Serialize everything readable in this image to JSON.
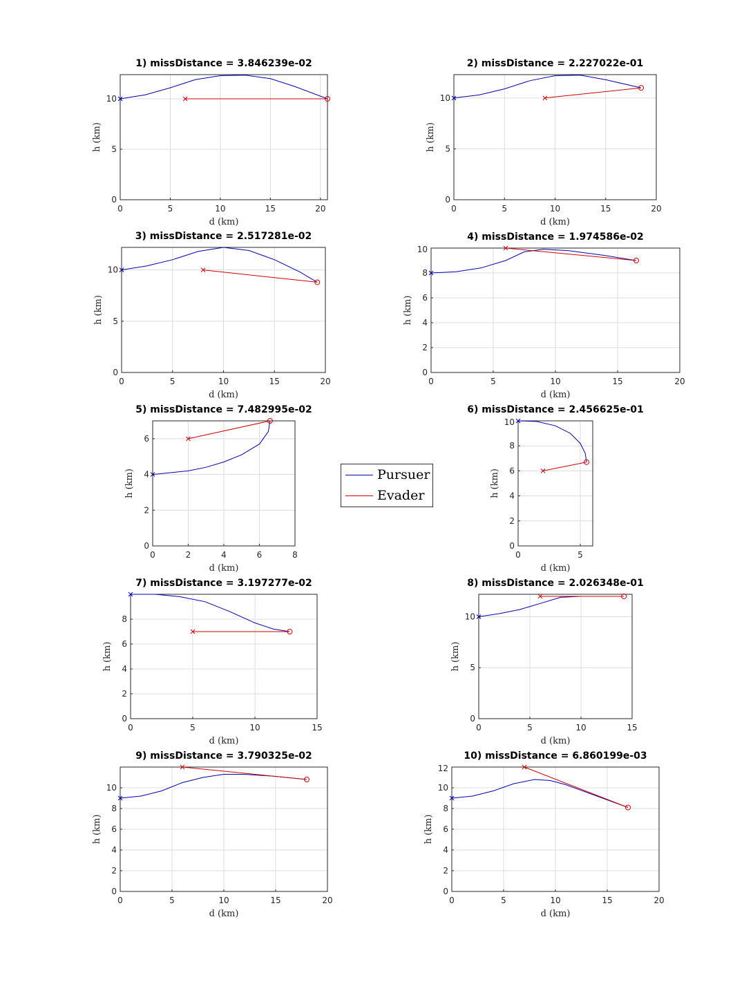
{
  "legend": {
    "pursuer": "Pursuer",
    "evader": "Evader"
  },
  "colors": {
    "pursuer": "#0000b0",
    "evader": "#d00000",
    "grid": "#dcdcdc"
  },
  "chart_data": [
    {
      "type": "line",
      "title": "1) missDistance = 3.846239e-02",
      "xlabel": "d (km)",
      "ylabel": "h (km)",
      "xlim": [
        0,
        20.7
      ],
      "ylim": [
        0,
        12.4
      ],
      "xticks": [
        0,
        5,
        10,
        15,
        20
      ],
      "yticks": [
        0,
        5,
        10
      ],
      "pursuer": [
        [
          0,
          10
        ],
        [
          2.5,
          10.4
        ],
        [
          5,
          11.1
        ],
        [
          7.5,
          11.9
        ],
        [
          10,
          12.3
        ],
        [
          12.5,
          12.35
        ],
        [
          15,
          12
        ],
        [
          17.5,
          11.2
        ],
        [
          20.7,
          10
        ]
      ],
      "evader": [
        [
          6.5,
          10
        ],
        [
          20.7,
          10
        ]
      ]
    },
    {
      "type": "line",
      "title": "2) missDistance = 2.227022e-01",
      "xlabel": "d (km)",
      "ylabel": "h (km)",
      "xlim": [
        0,
        20
      ],
      "ylim": [
        0,
        12.3
      ],
      "xticks": [
        0,
        5,
        10,
        15,
        20
      ],
      "yticks": [
        0,
        5,
        10
      ],
      "pursuer": [
        [
          0,
          10
        ],
        [
          2.5,
          10.3
        ],
        [
          5,
          10.9
        ],
        [
          7.5,
          11.7
        ],
        [
          10,
          12.2
        ],
        [
          12.5,
          12.25
        ],
        [
          15,
          11.8
        ],
        [
          18.5,
          11
        ]
      ],
      "evader": [
        [
          9,
          10
        ],
        [
          18.5,
          11
        ]
      ]
    },
    {
      "type": "line",
      "title": "3) missDistance = 2.517281e-02",
      "xlabel": "d (km)",
      "ylabel": "h (km)",
      "xlim": [
        0,
        20
      ],
      "ylim": [
        0,
        12.2
      ],
      "xticks": [
        0,
        5,
        10,
        15,
        20
      ],
      "yticks": [
        0,
        5,
        10
      ],
      "pursuer": [
        [
          0,
          10
        ],
        [
          2.5,
          10.4
        ],
        [
          5,
          11
        ],
        [
          7.5,
          11.8
        ],
        [
          10,
          12.2
        ],
        [
          12.5,
          11.9
        ],
        [
          15,
          11
        ],
        [
          17.5,
          9.8
        ],
        [
          19.2,
          8.8
        ]
      ],
      "evader": [
        [
          8,
          10
        ],
        [
          19.2,
          8.8
        ]
      ]
    },
    {
      "type": "line",
      "title": "4) missDistance = 1.974586e-02",
      "xlabel": "d (km)",
      "ylabel": "h (km)",
      "xlim": [
        0,
        20
      ],
      "ylim": [
        0,
        10
      ],
      "xticks": [
        0,
        5,
        10,
        15,
        20
      ],
      "yticks": [
        0,
        2,
        4,
        6,
        8,
        10
      ],
      "pursuer": [
        [
          0,
          8
        ],
        [
          2,
          8.1
        ],
        [
          4,
          8.4
        ],
        [
          6,
          9
        ],
        [
          7.5,
          9.7
        ],
        [
          9,
          9.9
        ],
        [
          11,
          9.8
        ],
        [
          14,
          9.4
        ],
        [
          16.5,
          9
        ]
      ],
      "evader": [
        [
          6,
          10
        ],
        [
          16.5,
          9
        ]
      ]
    },
    {
      "type": "line",
      "title": "5) missDistance = 7.482995e-02",
      "xlabel": "d (km)",
      "ylabel": "h (km)",
      "xlim": [
        0,
        8
      ],
      "ylim": [
        0,
        7
      ],
      "xticks": [
        0,
        2,
        4,
        6,
        8
      ],
      "yticks": [
        0,
        2,
        4,
        6
      ],
      "pursuer": [
        [
          0,
          4
        ],
        [
          1,
          4.1
        ],
        [
          2,
          4.2
        ],
        [
          3,
          4.4
        ],
        [
          4,
          4.7
        ],
        [
          5,
          5.1
        ],
        [
          6,
          5.7
        ],
        [
          6.5,
          6.4
        ],
        [
          6.6,
          7
        ]
      ],
      "evader": [
        [
          2,
          6
        ],
        [
          6.6,
          7
        ]
      ]
    },
    {
      "type": "line",
      "title": "6) missDistance = 2.456625e-01",
      "xlabel": "d (km)",
      "ylabel": "h (km)",
      "xlim": [
        0,
        6
      ],
      "ylim": [
        0,
        10
      ],
      "xticks": [
        0,
        5
      ],
      "yticks": [
        0,
        2,
        4,
        6,
        8,
        10
      ],
      "pursuer": [
        [
          0,
          10
        ],
        [
          1.5,
          9.95
        ],
        [
          3,
          9.6
        ],
        [
          4.2,
          9
        ],
        [
          5,
          8.2
        ],
        [
          5.4,
          7.4
        ],
        [
          5.5,
          6.7
        ]
      ],
      "evader": [
        [
          2,
          6
        ],
        [
          5.5,
          6.7
        ]
      ]
    },
    {
      "type": "line",
      "title": "7) missDistance = 3.197277e-02",
      "xlabel": "d (km)",
      "ylabel": "h (km)",
      "xlim": [
        0,
        15
      ],
      "ylim": [
        0,
        10
      ],
      "xticks": [
        0,
        5,
        10,
        15
      ],
      "yticks": [
        0,
        2,
        4,
        6,
        8
      ],
      "pursuer": [
        [
          0,
          10
        ],
        [
          2,
          10
        ],
        [
          4,
          9.8
        ],
        [
          6,
          9.4
        ],
        [
          8,
          8.6
        ],
        [
          10,
          7.7
        ],
        [
          11.5,
          7.2
        ],
        [
          12.8,
          7
        ]
      ],
      "evader": [
        [
          5,
          7
        ],
        [
          12.8,
          7
        ]
      ]
    },
    {
      "type": "line",
      "title": "8) missDistance = 2.026348e-01",
      "xlabel": "d (km)",
      "ylabel": "h (km)",
      "xlim": [
        0,
        15
      ],
      "ylim": [
        0,
        12.2
      ],
      "xticks": [
        0,
        5,
        10,
        15
      ],
      "yticks": [
        0,
        5,
        10
      ],
      "pursuer": [
        [
          0,
          10
        ],
        [
          2,
          10.3
        ],
        [
          4,
          10.7
        ],
        [
          6,
          11.3
        ],
        [
          8,
          11.9
        ],
        [
          10,
          12
        ],
        [
          14.2,
          12
        ]
      ],
      "evader": [
        [
          6,
          12
        ],
        [
          14.2,
          12
        ]
      ]
    },
    {
      "type": "line",
      "title": "9) missDistance = 3.790325e-02",
      "xlabel": "d (km)",
      "ylabel": "h (km)",
      "xlim": [
        0,
        20
      ],
      "ylim": [
        0,
        12
      ],
      "xticks": [
        0,
        5,
        10,
        15,
        20
      ],
      "yticks": [
        0,
        2,
        4,
        6,
        8,
        10
      ],
      "pursuer": [
        [
          0,
          9
        ],
        [
          2,
          9.2
        ],
        [
          4,
          9.7
        ],
        [
          6,
          10.5
        ],
        [
          8,
          11
        ],
        [
          10,
          11.3
        ],
        [
          12,
          11.3
        ],
        [
          15,
          11.1
        ],
        [
          18,
          10.8
        ]
      ],
      "evader": [
        [
          6,
          12
        ],
        [
          18,
          10.8
        ]
      ]
    },
    {
      "type": "line",
      "title": "10) missDistance = 6.860199e-03",
      "xlabel": "d (km)",
      "ylabel": "h (km)",
      "xlim": [
        0,
        20
      ],
      "ylim": [
        0,
        12
      ],
      "xticks": [
        0,
        5,
        10,
        15,
        20
      ],
      "yticks": [
        0,
        2,
        4,
        6,
        8,
        10,
        12
      ],
      "pursuer": [
        [
          0,
          9
        ],
        [
          2,
          9.2
        ],
        [
          4,
          9.7
        ],
        [
          6,
          10.4
        ],
        [
          8,
          10.8
        ],
        [
          9.5,
          10.7
        ],
        [
          11,
          10.3
        ],
        [
          14,
          9.2
        ],
        [
          17,
          8.1
        ]
      ],
      "evader": [
        [
          7,
          12
        ],
        [
          17,
          8.1
        ]
      ]
    }
  ]
}
